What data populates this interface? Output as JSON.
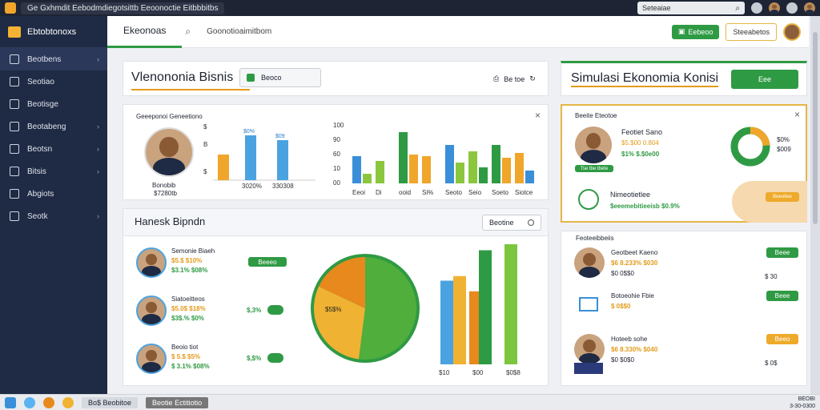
{
  "os": {
    "title": "Ge Gxhmdit Eebodmdiegotsittb Eeoonoctie Eitbbbitbs",
    "search_placeholder": "Seteaiae"
  },
  "app": {
    "brand": "Ebtobtonoxs"
  },
  "sidebar": {
    "items": [
      {
        "label": "Beotbens",
        "icon": "home-icon",
        "chev": true
      },
      {
        "label": "Seotiao",
        "icon": "users-icon",
        "chev": false
      },
      {
        "label": "Beotisge",
        "icon": "briefcase-icon",
        "chev": false
      },
      {
        "label": "Beotabeng",
        "icon": "chart-icon",
        "chev": true
      },
      {
        "label": "Beotsn",
        "icon": "list-icon",
        "chev": true
      },
      {
        "label": "Bitsis",
        "icon": "book-icon",
        "chev": true
      },
      {
        "label": "Abgiots",
        "icon": "analytics-icon",
        "chev": false
      },
      {
        "label": "Seotk",
        "icon": "globe-icon",
        "chev": true
      }
    ]
  },
  "header": {
    "tab_active": "Ekeonoas",
    "tab_plain": "Goonotioaimitbom",
    "btn_green": "Eebeoo",
    "btn_outline": "Steeabetos"
  },
  "overview": {
    "title": "Vlenononia Bisnis",
    "button": "Beoco",
    "action": "Be toe"
  },
  "sim": {
    "title": "Simulasi Ekonomia Konisi",
    "button": "Eee"
  },
  "top_stats": {
    "title": "Geeeponoi Geneetiono",
    "person_name": "Bonobib",
    "person_sub": "$7280tb",
    "bar_labels": [
      "$0%",
      "$09"
    ],
    "axis_labels": [
      "$",
      "B",
      "$"
    ],
    "x_labels": [
      "3020%",
      "330308"
    ],
    "close": "×"
  },
  "mid_chart": {
    "y_ticks": [
      "100",
      "90",
      "60",
      "10",
      "00"
    ],
    "x_labels": [
      "Eeoi",
      "Di",
      "ooid",
      "Si%",
      "Seoto",
      "Seio",
      "Soeto",
      "Siotce"
    ],
    "series_colors": [
      "#3a8fd8",
      "#8cc63f",
      "#2f9a44",
      "#f0a62b"
    ]
  },
  "sim_card": {
    "header": "Beeite Eteotoe",
    "name": "Feotiet Sano",
    "val1": "$5.$00 0.804",
    "val2": "$1% $.$0e00",
    "tag": "Tse tbe tbete",
    "donut_labels": [
      "$0%",
      "$009"
    ],
    "bottom_label": "Nimeotietlee",
    "bottom_val": "$eeemebitieeisb $0.9%",
    "orange_btn": "Beeotiee",
    "close": "×"
  },
  "list": {
    "title": "Hanesk Bipndn",
    "button": "Beotine",
    "rows": [
      {
        "name": "Semonie Biaeh",
        "v1": "$5.$ $10%",
        "v2": "$3.1% $08%",
        "pct": "",
        "btn": "Beeeo"
      },
      {
        "name": "Siatoeitteos",
        "v1": "$5.0$ $18%",
        "v2": "$3$.% $0%",
        "pct": "$,3%",
        "btn": ""
      },
      {
        "name": "Beoio tiot",
        "v1": "$ 5.$ $5%",
        "v2": "$ 3.1% $08%",
        "pct": "$,$%",
        "btn": ""
      }
    ],
    "pie_label": "$5$%",
    "pie_values": [
      52,
      30,
      18
    ],
    "pie_colors": [
      "#4fae3c",
      "#f0b233",
      "#e8891d"
    ],
    "bar_x_labels": [
      "$10",
      "$00",
      "$0$8"
    ],
    "bar_values": [
      55,
      58,
      48,
      75,
      80
    ],
    "bar_colors": [
      "#4aa3e0",
      "#f0b233",
      "#e8891d",
      "#2f9a44",
      "#7cc63f"
    ]
  },
  "right_list": {
    "title": "Feoteeibbeiis",
    "rows": [
      {
        "name": "Geotbeet Kaeno",
        "v1": "$6 8.233% $030",
        "v2": "$0 0$$0",
        "ind": "$ 30",
        "btn": "Beee",
        "btn_type": "green"
      },
      {
        "name": "Botoeohie Fbie",
        "v1": "$ 0$$0",
        "v2": "",
        "ind": "",
        "btn": "Beee",
        "btn_type": "green"
      },
      {
        "name": "Hoteeb sohe",
        "v1": "$6 8.330% $040",
        "v2": "$0 $0$0",
        "ind": "$ 0$",
        "btn": "Beeo",
        "btn_type": "orange"
      }
    ]
  },
  "taskbar": {
    "item1": "Bo$ Beobitoe",
    "item2": "Beotie Ectitiotio",
    "clock1": "BEOBI",
    "clock2": "3-30-0300"
  }
}
